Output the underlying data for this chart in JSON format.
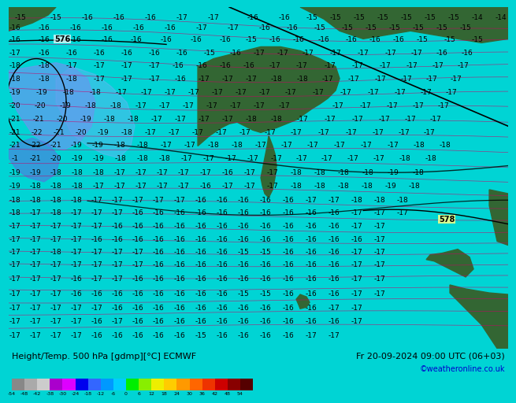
{
  "title_left": "Height/Temp. 500 hPa [gdmp][°C] ECMWF",
  "title_right": "Fr 20-09-2024 09:00 UTC (06+03)",
  "attribution": "©weatheronline.co.uk",
  "map_bg": "#00d4d4",
  "bottom_bg": "#00d4d4",
  "fig_bg": "#00d4d4",
  "land_color": "#336633",
  "sea_color": "#00cccc",
  "blue_shading": "#5599ff",
  "colorbar_values": [
    -54,
    -48,
    -42,
    -38,
    -30,
    -24,
    -18,
    -12,
    -6,
    0,
    6,
    12,
    18,
    24,
    30,
    36,
    42,
    48,
    54
  ],
  "colorbar_colors": [
    "#888888",
    "#aaaaaa",
    "#cccccc",
    "#aa00cc",
    "#dd00ff",
    "#0000ee",
    "#3366ff",
    "#0099ff",
    "#00ccff",
    "#00ee00",
    "#88ee00",
    "#eeee00",
    "#ffcc00",
    "#ff9900",
    "#ff6600",
    "#ee3300",
    "#cc0000",
    "#880000",
    "#550000"
  ],
  "title_fontsize": 8,
  "attr_fontsize": 7,
  "label_fontsize": 6.5,
  "contour_color": "#cc0066",
  "black_contour_color": "#000000",
  "label_color": "#000000"
}
